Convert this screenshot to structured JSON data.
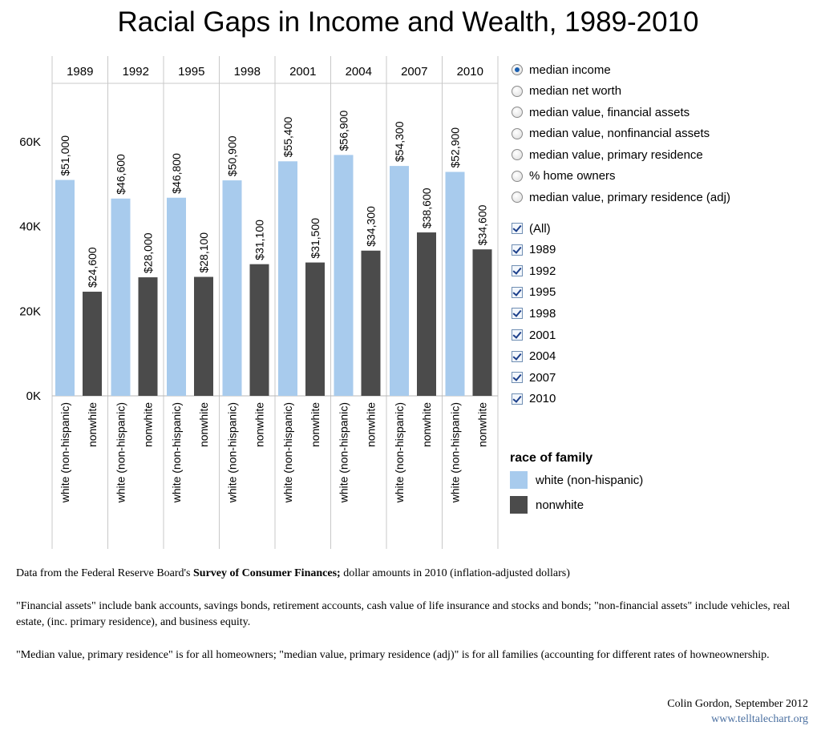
{
  "title": "Racial Gaps in Income and Wealth, 1989-2010",
  "measure_selector": {
    "selected": 0,
    "options": [
      "median income",
      "median net worth",
      "median value, financial assets",
      "median value, nonfinancial assets",
      "median value, primary residence",
      "% home owners",
      "median value, primary residence (adj)"
    ]
  },
  "year_filter": {
    "items": [
      {
        "label": "(All)",
        "checked": true
      },
      {
        "label": "1989",
        "checked": true
      },
      {
        "label": "1992",
        "checked": true
      },
      {
        "label": "1995",
        "checked": true
      },
      {
        "label": "1998",
        "checked": true
      },
      {
        "label": "2001",
        "checked": true
      },
      {
        "label": "2004",
        "checked": true
      },
      {
        "label": "2007",
        "checked": true
      },
      {
        "label": "2010",
        "checked": true
      }
    ]
  },
  "legend": {
    "title": "race of family",
    "items": [
      {
        "label": "white (non-hispanic)",
        "color": "#a8cbed"
      },
      {
        "label": "nonwhite",
        "color": "#4b4b4b"
      }
    ]
  },
  "chart_data": {
    "type": "bar",
    "categories": [
      "1989",
      "1992",
      "1995",
      "1998",
      "2001",
      "2004",
      "2007",
      "2010"
    ],
    "groups": [
      "white (non-hispanic)",
      "nonwhite"
    ],
    "series": [
      {
        "name": "white (non-hispanic)",
        "color": "#a8cbed",
        "values": [
          51000,
          46600,
          46800,
          50900,
          55400,
          56900,
          54300,
          52900
        ],
        "labels": [
          "$51,000",
          "$46,600",
          "$46,800",
          "$50,900",
          "$55,400",
          "$56,900",
          "$54,300",
          "$52,900"
        ]
      },
      {
        "name": "nonwhite",
        "color": "#4b4b4b",
        "values": [
          24600,
          28000,
          28100,
          31100,
          31500,
          34300,
          38600,
          34600
        ],
        "labels": [
          "$24,600",
          "$28,000",
          "$28,100",
          "$31,100",
          "$31,500",
          "$34,300",
          "$38,600",
          "$34,600"
        ]
      }
    ],
    "y_ticks": [
      {
        "value": 0,
        "label": "0K"
      },
      {
        "value": 20000,
        "label": "20K"
      },
      {
        "value": 40000,
        "label": "40K"
      },
      {
        "value": 60000,
        "label": "60K"
      }
    ],
    "ylim": [
      0,
      74000
    ]
  },
  "notes": {
    "source_prefix": "Data from the Federal Reserve Board's ",
    "source_bold": "Survey of Consumer Finances;",
    "source_suffix": " dollar amounts in 2010 (inflation-adjusted dollars)",
    "financial": "\"Financial assets\" include bank accounts, savings bonds, retirement accounts, cash value of life insurance and stocks and bonds; \"non-financial assets\" include vehicles, real estate, (inc. primary residence), and business equity.",
    "residence": "\"Median value, primary residence\" is for all homeowners; \"median value, primary residence (adj)\" is for all families (accounting for different rates of howneownership."
  },
  "credit": "Colin Gordon, September 2012",
  "site": "www.telltalechart.org"
}
